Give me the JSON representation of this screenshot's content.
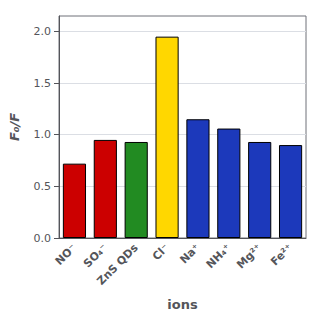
{
  "chart_data": {
    "type": "bar",
    "categories": [
      "NO⁻",
      "SO₄⁻",
      "ZnS QDs",
      "Cl⁻",
      "Na⁺",
      "NH₄⁺",
      "Mg²⁺",
      "Fe²⁺"
    ],
    "values": [
      0.72,
      0.95,
      0.93,
      1.95,
      1.15,
      1.06,
      0.93,
      0.9
    ],
    "colors": [
      "#CC0000",
      "#CC0000",
      "#228B22",
      "#FFD700",
      "#1C39BB",
      "#1C39BB",
      "#1C39BB",
      "#1C39BB"
    ],
    "xlabel": "ions",
    "ylabel": "F₀/F",
    "ylim": [
      0,
      2.15
    ],
    "yticks": [
      {
        "value": 0,
        "label": "0.0"
      },
      0.5,
      {
        "value": 1,
        "label": "1.0"
      },
      1.5,
      {
        "value": 2,
        "label": "2.0"
      }
    ],
    "grid": true
  }
}
